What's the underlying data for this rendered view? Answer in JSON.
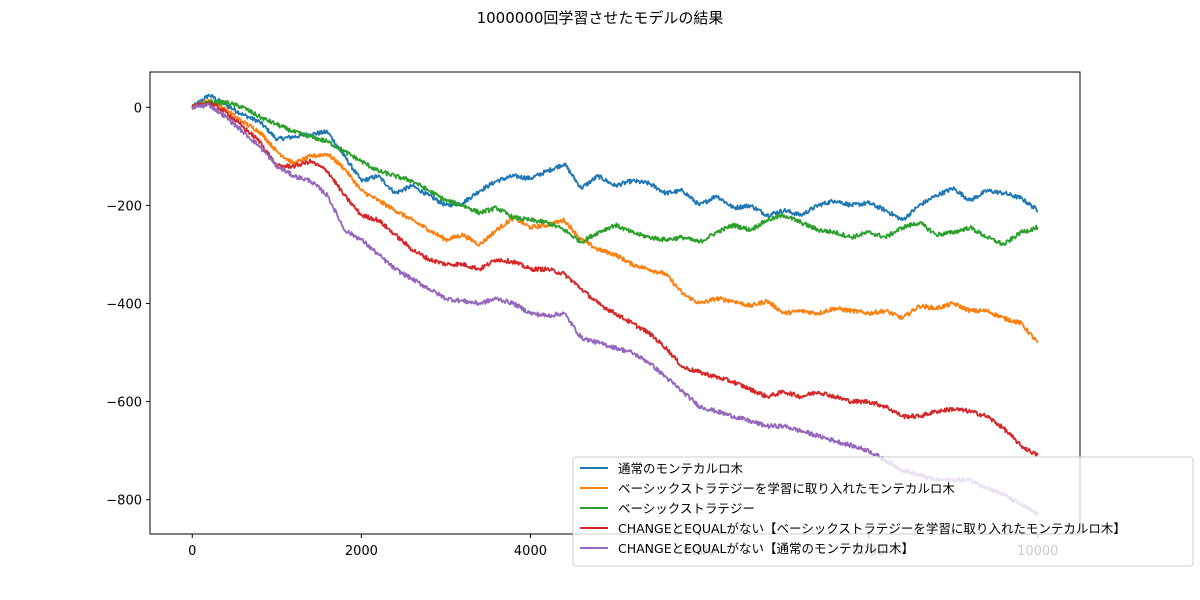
{
  "chart_data": {
    "type": "line",
    "title": "1000000回学習させたモデルの結果",
    "xlabel": "",
    "ylabel": "",
    "xlim": [
      -500,
      10500
    ],
    "ylim": [
      -870,
      72
    ],
    "x_ticks": [
      0,
      2000,
      4000,
      6000,
      8000,
      10000
    ],
    "y_ticks": [
      0,
      -200,
      -400,
      -600,
      -800
    ],
    "x_tick_labels": [
      "0",
      "2000",
      "4000",
      "6000",
      "8000",
      "10000"
    ],
    "y_tick_labels": [
      "0",
      "−200",
      "−400",
      "−600",
      "−800"
    ],
    "grid": false,
    "legend_position": "lower-right",
    "series": [
      {
        "name": "通常のモンテカルロ木",
        "color": "#1f77b4",
        "x": [
          0,
          200,
          400,
          600,
          800,
          1000,
          1200,
          1400,
          1600,
          1800,
          2000,
          2200,
          2400,
          2600,
          2800,
          3000,
          3200,
          3400,
          3600,
          3800,
          4000,
          4200,
          4400,
          4600,
          4800,
          5000,
          5200,
          5400,
          5600,
          5800,
          6000,
          6200,
          6400,
          6600,
          6800,
          7000,
          7200,
          7400,
          7600,
          7800,
          8000,
          8200,
          8400,
          8600,
          8800,
          9000,
          9200,
          9400,
          9600,
          9800,
          10000
        ],
        "values": [
          0,
          25,
          5,
          -15,
          -30,
          -65,
          -60,
          -55,
          -50,
          -100,
          -150,
          -140,
          -175,
          -160,
          -180,
          -200,
          -195,
          -170,
          -150,
          -140,
          -145,
          -130,
          -115,
          -165,
          -140,
          -160,
          -150,
          -155,
          -175,
          -170,
          -200,
          -180,
          -205,
          -200,
          -220,
          -210,
          -220,
          -200,
          -190,
          -200,
          -195,
          -210,
          -230,
          -200,
          -180,
          -165,
          -190,
          -170,
          -175,
          -185,
          -210
        ]
      },
      {
        "name": "ベーシックストラテジーを学習に取り入れたモンテカルロ木",
        "color": "#ff7f0e",
        "x": [
          0,
          200,
          400,
          600,
          800,
          1000,
          1200,
          1400,
          1600,
          1800,
          2000,
          2200,
          2400,
          2600,
          2800,
          3000,
          3200,
          3400,
          3600,
          3800,
          4000,
          4200,
          4400,
          4600,
          4800,
          5000,
          5200,
          5400,
          5600,
          5800,
          6000,
          6200,
          6400,
          6600,
          6800,
          7000,
          7200,
          7400,
          7600,
          7800,
          8000,
          8200,
          8400,
          8600,
          8800,
          9000,
          9200,
          9400,
          9600,
          9800,
          10000
        ],
        "values": [
          0,
          15,
          -5,
          -30,
          -50,
          -90,
          -115,
          -100,
          -95,
          -125,
          -170,
          -190,
          -210,
          -230,
          -250,
          -270,
          -260,
          -280,
          -250,
          -225,
          -245,
          -240,
          -230,
          -270,
          -290,
          -300,
          -320,
          -330,
          -340,
          -380,
          -400,
          -390,
          -395,
          -405,
          -395,
          -420,
          -415,
          -420,
          -410,
          -415,
          -420,
          -415,
          -430,
          -405,
          -410,
          -400,
          -415,
          -415,
          -430,
          -440,
          -480
        ]
      },
      {
        "name": "ベーシックストラテジー",
        "color": "#2ca02c",
        "x": [
          0,
          200,
          400,
          600,
          800,
          1000,
          1200,
          1400,
          1600,
          1800,
          2000,
          2200,
          2400,
          2600,
          2800,
          3000,
          3200,
          3400,
          3600,
          3800,
          4000,
          4200,
          4400,
          4600,
          4800,
          5000,
          5200,
          5400,
          5600,
          5800,
          6000,
          6200,
          6400,
          6600,
          6800,
          7000,
          7200,
          7400,
          7600,
          7800,
          8000,
          8200,
          8400,
          8600,
          8800,
          9000,
          9200,
          9400,
          9600,
          9800,
          10000
        ],
        "values": [
          0,
          10,
          10,
          0,
          -20,
          -35,
          -50,
          -60,
          -70,
          -90,
          -110,
          -130,
          -140,
          -150,
          -170,
          -190,
          -200,
          -215,
          -205,
          -225,
          -230,
          -235,
          -250,
          -275,
          -255,
          -240,
          -255,
          -265,
          -270,
          -265,
          -275,
          -255,
          -240,
          -250,
          -230,
          -220,
          -235,
          -250,
          -255,
          -265,
          -255,
          -265,
          -245,
          -235,
          -260,
          -255,
          -245,
          -265,
          -280,
          -255,
          -245
        ]
      },
      {
        "name": "CHANGEとEQUALがない【ベーシックストラテジーを学習に取り入れたモンテカルロ木】",
        "color": "#d62728",
        "x": [
          0,
          200,
          400,
          600,
          800,
          1000,
          1200,
          1400,
          1600,
          1800,
          2000,
          2200,
          2400,
          2600,
          2800,
          3000,
          3200,
          3400,
          3600,
          3800,
          4000,
          4200,
          4400,
          4600,
          4800,
          5000,
          5200,
          5400,
          5600,
          5800,
          6000,
          6200,
          6400,
          6600,
          6800,
          7000,
          7200,
          7400,
          7600,
          7800,
          8000,
          8200,
          8400,
          8600,
          8800,
          9000,
          9200,
          9400,
          9600,
          9800,
          10000
        ],
        "values": [
          0,
          10,
          -10,
          -40,
          -70,
          -120,
          -120,
          -110,
          -130,
          -180,
          -220,
          -230,
          -260,
          -290,
          -310,
          -320,
          -320,
          -330,
          -310,
          -315,
          -330,
          -330,
          -340,
          -370,
          -400,
          -420,
          -440,
          -460,
          -490,
          -530,
          -540,
          -550,
          -560,
          -575,
          -590,
          -580,
          -590,
          -580,
          -590,
          -600,
          -600,
          -610,
          -630,
          -630,
          -620,
          -615,
          -620,
          -630,
          -655,
          -690,
          -710
        ]
      },
      {
        "name": "CHANGEとEQUALがない【通常のモンテカルロ木】",
        "color": "#9467bd",
        "x": [
          0,
          200,
          400,
          600,
          800,
          1000,
          1200,
          1400,
          1600,
          1800,
          2000,
          2200,
          2400,
          2600,
          2800,
          3000,
          3200,
          3400,
          3600,
          3800,
          4000,
          4200,
          4400,
          4600,
          4800,
          5000,
          5200,
          5400,
          5600,
          5800,
          6000,
          6200,
          6400,
          6600,
          6800,
          7000,
          7200,
          7400,
          7600,
          7800,
          8000,
          8200,
          8400,
          8600,
          8800,
          9000,
          9200,
          9400,
          9600,
          9800,
          10000
        ],
        "values": [
          0,
          5,
          -20,
          -50,
          -80,
          -120,
          -140,
          -150,
          -180,
          -250,
          -270,
          -300,
          -330,
          -350,
          -370,
          -390,
          -395,
          -400,
          -390,
          -400,
          -420,
          -425,
          -420,
          -470,
          -480,
          -490,
          -500,
          -520,
          -550,
          -580,
          -610,
          -620,
          -630,
          -640,
          -650,
          -650,
          -660,
          -670,
          -680,
          -690,
          -700,
          -720,
          -740,
          -750,
          -760,
          -760,
          -760,
          -775,
          -790,
          -810,
          -830
        ]
      }
    ]
  }
}
